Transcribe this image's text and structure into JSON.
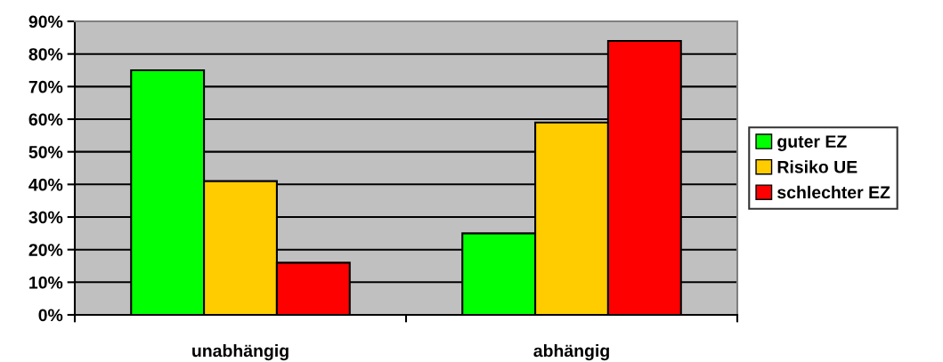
{
  "chart_data": {
    "type": "bar",
    "categories": [
      "unabhängig",
      "abhängig"
    ],
    "series": [
      {
        "name": "guter EZ",
        "color": "#00ff00",
        "values": [
          75,
          25
        ]
      },
      {
        "name": "Risiko UE",
        "color": "#ffcc00",
        "values": [
          41,
          59
        ]
      },
      {
        "name": "schlechter EZ",
        "color": "#ff0000",
        "values": [
          16,
          84
        ]
      }
    ],
    "ylim": [
      0,
      90
    ],
    "yticks": [
      {
        "value": 0,
        "label": "0%"
      },
      {
        "value": 10,
        "label": "10%"
      },
      {
        "value": 20,
        "label": "20%"
      },
      {
        "value": 30,
        "label": "30%"
      },
      {
        "value": 40,
        "label": "40%"
      },
      {
        "value": 50,
        "label": "50%"
      },
      {
        "value": 60,
        "label": "60%"
      },
      {
        "value": 70,
        "label": "70%"
      },
      {
        "value": 80,
        "label": "80%"
      },
      {
        "value": 90,
        "label": "90%"
      }
    ],
    "grid": "y",
    "legend": "right"
  }
}
